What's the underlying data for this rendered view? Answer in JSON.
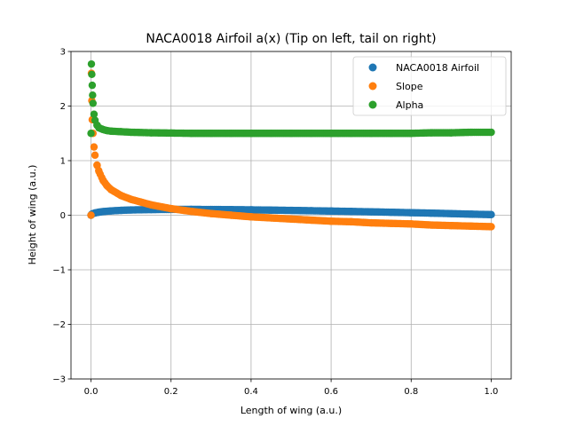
{
  "chart_data": {
    "type": "scatter",
    "title": "NACA0018 Airfoil a(x) (Tip on left, tail on right)",
    "xlabel": "Length of wing (a.u.)",
    "ylabel": "Height of wing (a.u.)",
    "xlim": [
      -0.05,
      1.05
    ],
    "ylim": [
      -3,
      3
    ],
    "xticks": [
      0.0,
      0.2,
      0.4,
      0.6,
      0.8,
      1.0
    ],
    "xtick_labels": [
      "0.0",
      "0.2",
      "0.4",
      "0.6",
      "0.8",
      "1.0"
    ],
    "yticks": [
      -3,
      -2,
      -1,
      0,
      1,
      2,
      3
    ],
    "ytick_labels": [
      "−3",
      "−2",
      "−1",
      "0",
      "1",
      "2",
      "3"
    ],
    "grid": true,
    "legend_position": "top-right",
    "series": [
      {
        "name": "NACA0018 Airfoil",
        "color": "#1f77b4",
        "x": [
          0.0,
          0.002,
          0.005,
          0.01,
          0.02,
          0.03,
          0.05,
          0.075,
          0.1,
          0.15,
          0.2,
          0.25,
          0.3,
          0.35,
          0.4,
          0.45,
          0.5,
          0.55,
          0.6,
          0.65,
          0.7,
          0.75,
          0.8,
          0.85,
          0.9,
          0.95,
          1.0
        ],
        "y": [
          0.0,
          0.02,
          0.03,
          0.041,
          0.056,
          0.066,
          0.079,
          0.089,
          0.096,
          0.103,
          0.106,
          0.106,
          0.105,
          0.102,
          0.098,
          0.093,
          0.088,
          0.082,
          0.076,
          0.069,
          0.062,
          0.054,
          0.046,
          0.038,
          0.029,
          0.019,
          0.011
        ]
      },
      {
        "name": "Slope",
        "color": "#ff7f0e",
        "x": [
          0.0,
          0.001,
          0.002,
          0.003,
          0.005,
          0.0075,
          0.01,
          0.015,
          0.02,
          0.03,
          0.04,
          0.05,
          0.075,
          0.1,
          0.15,
          0.2,
          0.25,
          0.3,
          0.35,
          0.4,
          0.45,
          0.5,
          0.55,
          0.6,
          0.65,
          0.7,
          0.75,
          0.8,
          0.85,
          0.9,
          0.95,
          1.0
        ],
        "y": [
          0.0,
          2.6,
          2.1,
          1.75,
          1.5,
          1.25,
          1.1,
          0.92,
          0.8,
          0.64,
          0.54,
          0.47,
          0.36,
          0.29,
          0.19,
          0.12,
          0.07,
          0.03,
          0.0,
          -0.03,
          -0.05,
          -0.07,
          -0.09,
          -0.11,
          -0.12,
          -0.14,
          -0.15,
          -0.16,
          -0.18,
          -0.19,
          -0.2,
          -0.21
        ]
      },
      {
        "name": "Alpha",
        "color": "#2ca02c",
        "x": [
          0.0,
          0.001,
          0.002,
          0.003,
          0.004,
          0.005,
          0.0075,
          0.01,
          0.015,
          0.02,
          0.03,
          0.04,
          0.05,
          0.075,
          0.1,
          0.15,
          0.2,
          0.25,
          0.3,
          0.35,
          0.4,
          0.45,
          0.5,
          0.55,
          0.6,
          0.65,
          0.7,
          0.75,
          0.8,
          0.85,
          0.9,
          0.95,
          1.0
        ],
        "y": [
          1.5,
          2.77,
          2.58,
          2.38,
          2.2,
          2.05,
          1.85,
          1.74,
          1.65,
          1.6,
          1.57,
          1.55,
          1.54,
          1.53,
          1.52,
          1.51,
          1.505,
          1.5,
          1.5,
          1.5,
          1.5,
          1.5,
          1.5,
          1.5,
          1.5,
          1.5,
          1.5,
          1.5,
          1.5,
          1.51,
          1.51,
          1.52,
          1.52
        ]
      }
    ]
  }
}
